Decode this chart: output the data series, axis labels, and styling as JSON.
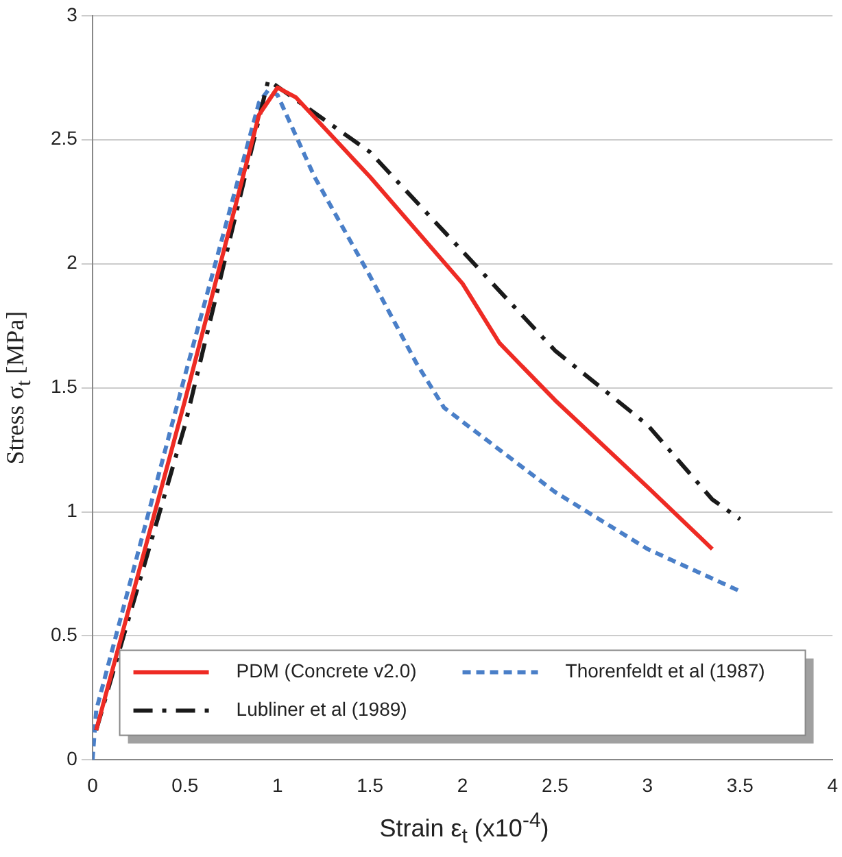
{
  "chart_data": {
    "type": "line",
    "xlabel": "Strain ε$_{t}$ (x10$^{-4}$)",
    "ylabel": "Stress σ$_{t}$ [MPa]",
    "xlim": [
      0,
      4
    ],
    "xticks": [
      0,
      0.5,
      1,
      1.5,
      2,
      2.5,
      3,
      3.5,
      4
    ],
    "ylim": [
      0,
      3
    ],
    "yticks": [
      0,
      0.5,
      1,
      1.5,
      2,
      2.5,
      3
    ],
    "grid": "y",
    "legend": "bottom",
    "marker": "none",
    "series": [
      {
        "name": "PDM (Concrete v2.0)",
        "color": "#ee2b24",
        "line_style": "solid",
        "x": [
          0.02,
          0.5,
          0.9,
          1.0,
          1.1,
          1.5,
          2.0,
          2.2,
          2.5,
          3.0,
          3.35
        ],
        "values": [
          0.12,
          1.45,
          2.6,
          2.71,
          2.67,
          2.35,
          1.92,
          1.68,
          1.45,
          1.1,
          0.85
        ]
      },
      {
        "name": "Lubliner et al (1989)",
        "color": "#1a1a1a",
        "line_style": "dashdot",
        "x": [
          0.02,
          0.5,
          0.95,
          1.5,
          2.0,
          2.5,
          3.0,
          3.35,
          3.5
        ],
        "values": [
          0.12,
          1.35,
          2.74,
          2.45,
          2.05,
          1.65,
          1.35,
          1.05,
          0.97
        ]
      },
      {
        "name": "Thorenfeldt et al (1987)",
        "color": "#4a7fc8",
        "line_style": "dashed",
        "x": [
          0,
          0.02,
          0.5,
          0.9,
          0.95,
          1.0,
          1.2,
          1.5,
          1.75,
          1.9,
          2.2,
          2.5,
          3.0,
          3.5
        ],
        "values": [
          0,
          0.2,
          1.55,
          2.65,
          2.7,
          2.68,
          2.35,
          1.95,
          1.6,
          1.42,
          1.25,
          1.08,
          0.85,
          0.68
        ]
      }
    ]
  }
}
